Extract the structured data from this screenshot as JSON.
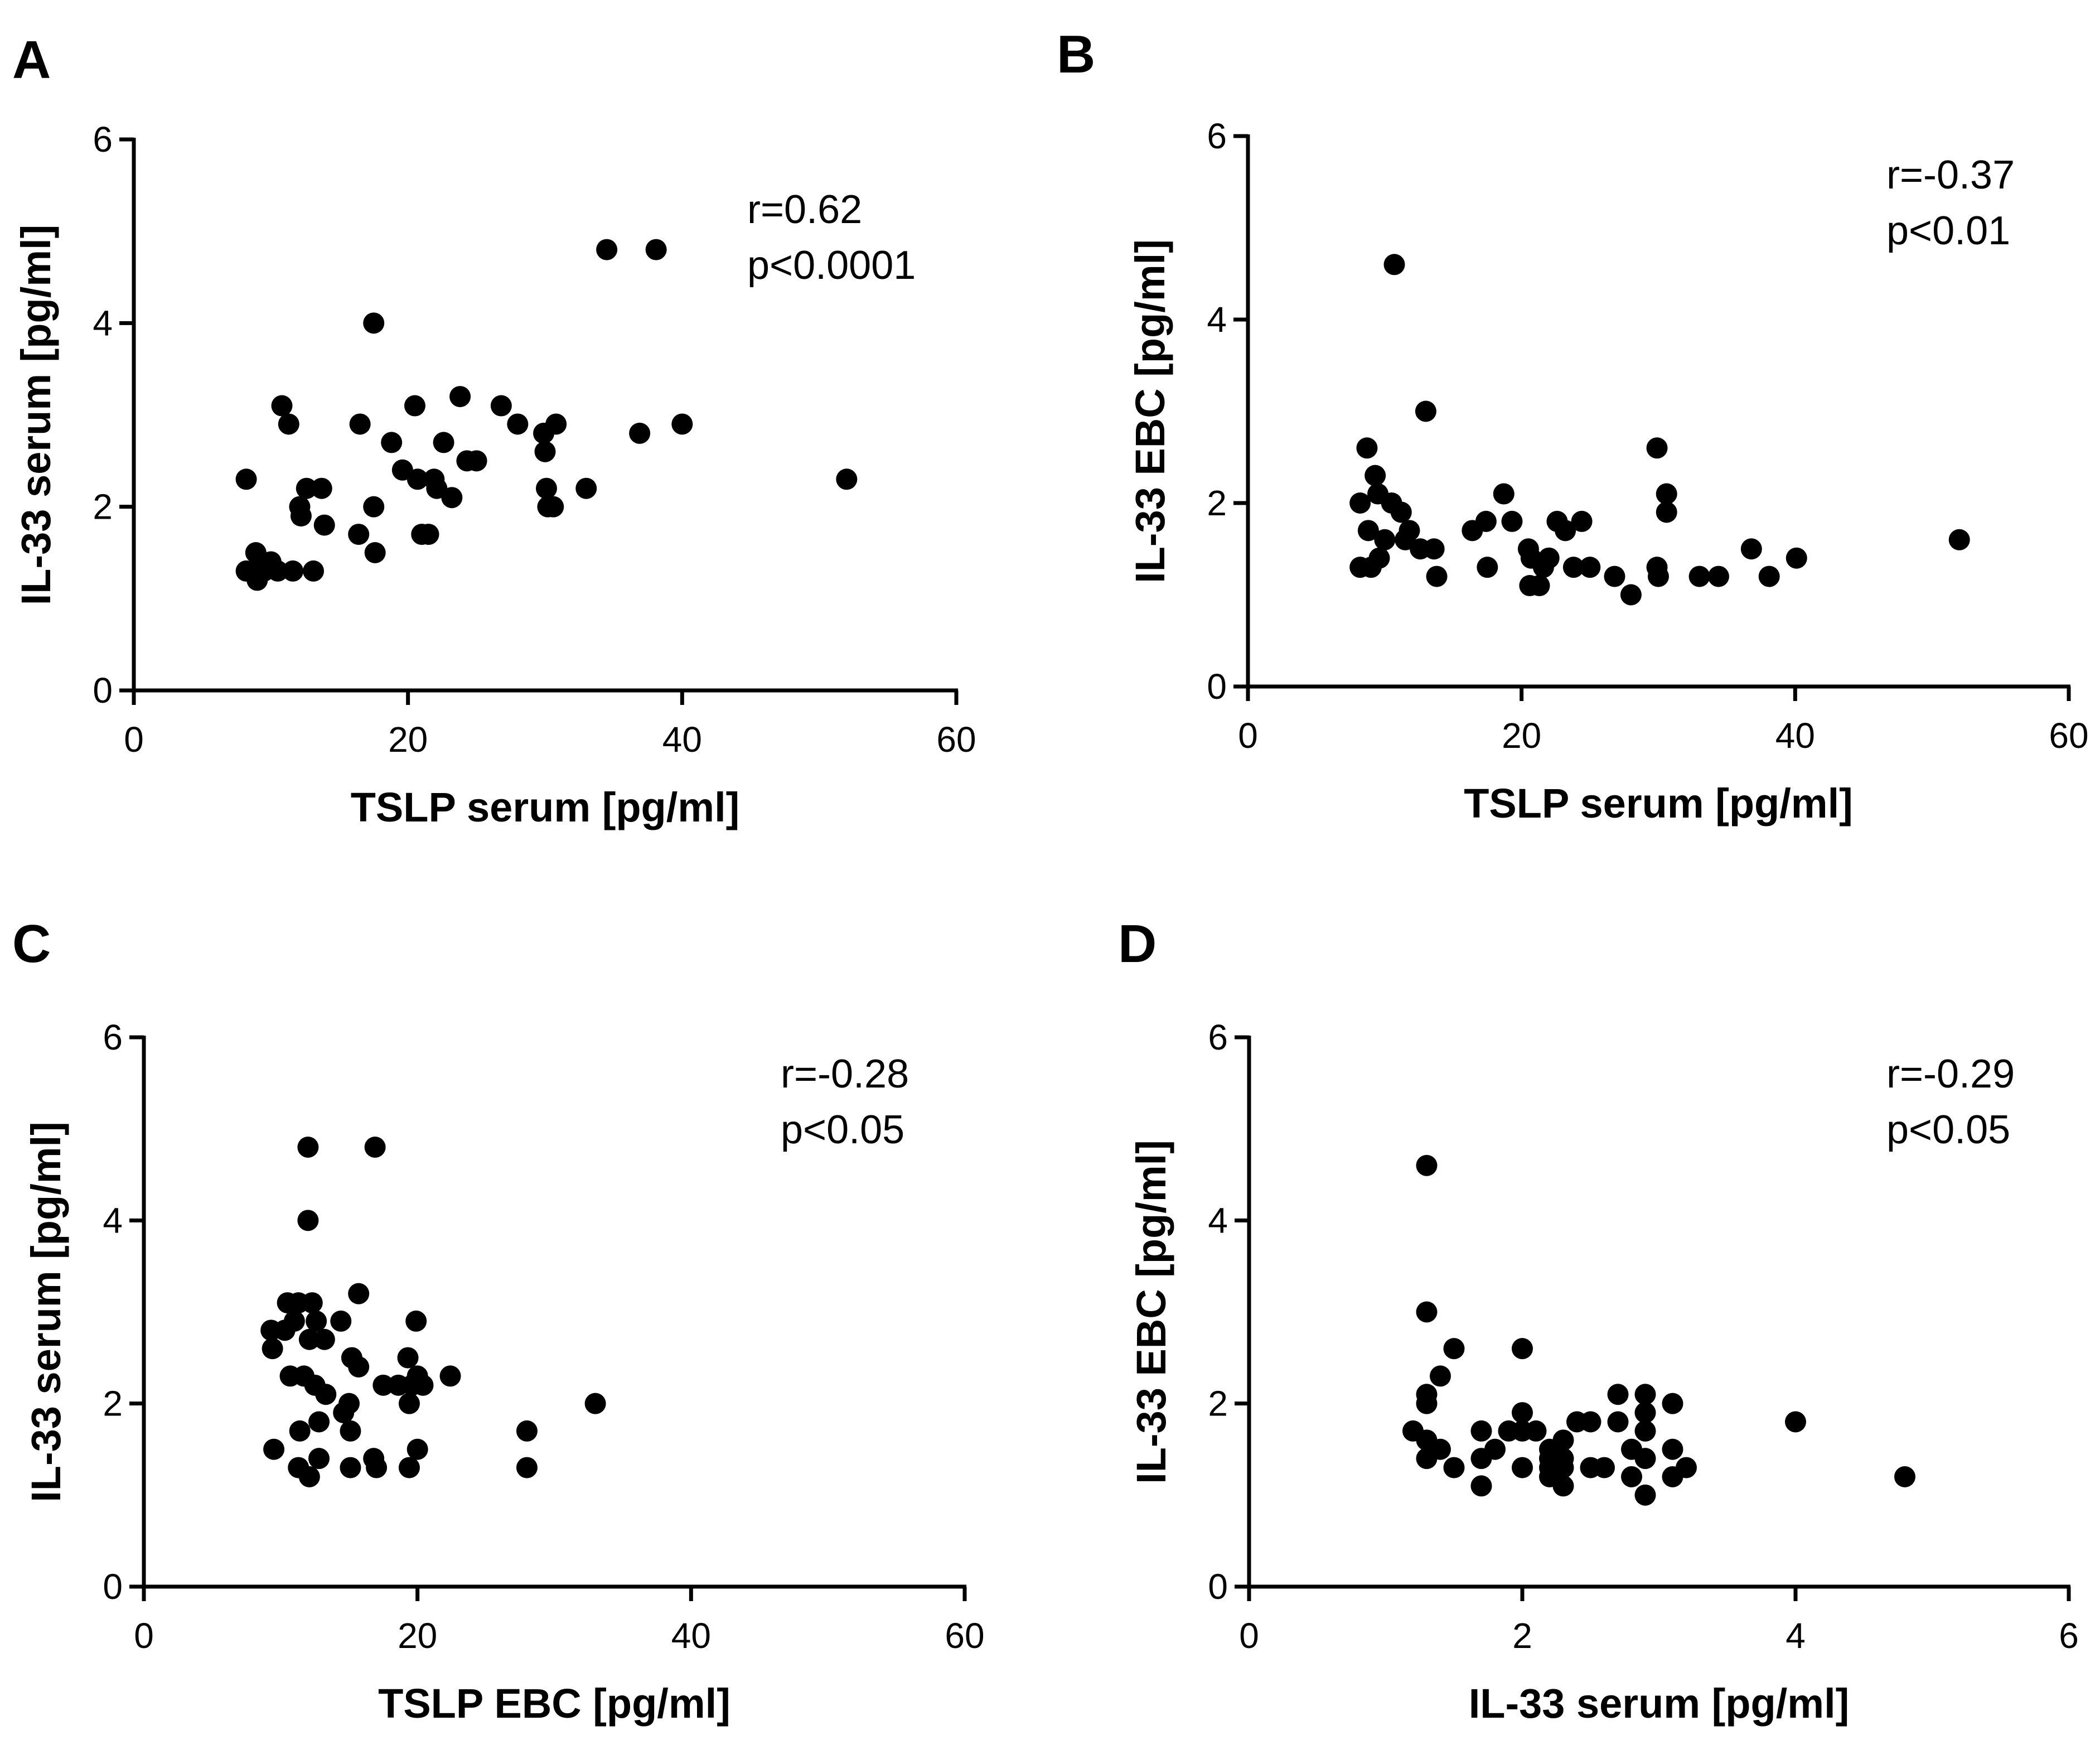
{
  "chart_data": [
    {
      "panel": "A",
      "type": "scatter",
      "xlabel": "TSLP serum [pg/ml]",
      "ylabel": "IL-33 serum [pg/ml]",
      "xlim": [
        0,
        60
      ],
      "ylim": [
        0,
        6
      ],
      "xticks": [
        "0",
        "20",
        "40",
        "60"
      ],
      "yticks": [
        "0",
        "2",
        "4",
        "6"
      ],
      "annotations": [
        "r=0.62",
        "p<0.0001"
      ],
      "points": [
        [
          8.2,
          2.3
        ],
        [
          8.2,
          1.3
        ],
        [
          8.7,
          1.3
        ],
        [
          8.9,
          1.5
        ],
        [
          9.0,
          1.2
        ],
        [
          9.5,
          1.3
        ],
        [
          10.0,
          1.4
        ],
        [
          10.5,
          1.3
        ],
        [
          10.8,
          3.1
        ],
        [
          11.3,
          2.9
        ],
        [
          11.6,
          1.3
        ],
        [
          12.1,
          2.0
        ],
        [
          12.2,
          1.9
        ],
        [
          12.6,
          2.2
        ],
        [
          13.1,
          1.3
        ],
        [
          13.7,
          2.2
        ],
        [
          13.9,
          1.8
        ],
        [
          16.4,
          1.7
        ],
        [
          16.5,
          2.9
        ],
        [
          17.5,
          4.0
        ],
        [
          17.5,
          2.0
        ],
        [
          17.6,
          1.5
        ],
        [
          18.8,
          2.7
        ],
        [
          19.6,
          2.4
        ],
        [
          20.5,
          3.1
        ],
        [
          20.7,
          2.3
        ],
        [
          21.0,
          1.7
        ],
        [
          21.5,
          1.7
        ],
        [
          21.9,
          2.3
        ],
        [
          22.1,
          2.2
        ],
        [
          22.6,
          2.7
        ],
        [
          23.2,
          2.1
        ],
        [
          23.8,
          3.2
        ],
        [
          24.3,
          2.5
        ],
        [
          25.0,
          2.5
        ],
        [
          26.8,
          3.1
        ],
        [
          28.0,
          2.9
        ],
        [
          29.9,
          2.8
        ],
        [
          30.0,
          2.6
        ],
        [
          30.1,
          2.2
        ],
        [
          30.2,
          2.0
        ],
        [
          30.6,
          2.0
        ],
        [
          30.8,
          2.9
        ],
        [
          33.0,
          2.2
        ],
        [
          34.5,
          4.8
        ],
        [
          36.9,
          2.8
        ],
        [
          38.1,
          4.8
        ],
        [
          40.0,
          2.9
        ],
        [
          52.0,
          2.3
        ]
      ]
    },
    {
      "panel": "B",
      "type": "scatter",
      "xlabel": "TSLP serum [pg/ml]",
      "ylabel": "IL-33 EBC [pg/ml]",
      "xlim": [
        0,
        60
      ],
      "ylim": [
        0,
        6
      ],
      "xticks": [
        "0",
        "20",
        "40",
        "60"
      ],
      "yticks": [
        "0",
        "2",
        "4",
        "6"
      ],
      "annotations": [
        "r=-0.37",
        "p<0.01"
      ],
      "points": [
        [
          8.2,
          2.0
        ],
        [
          8.2,
          1.3
        ],
        [
          8.7,
          2.6
        ],
        [
          8.8,
          1.7
        ],
        [
          9.0,
          1.3
        ],
        [
          9.3,
          2.3
        ],
        [
          9.5,
          2.1
        ],
        [
          9.6,
          1.4
        ],
        [
          10.0,
          1.6
        ],
        [
          10.5,
          2.0
        ],
        [
          10.7,
          4.6
        ],
        [
          11.2,
          1.9
        ],
        [
          11.5,
          1.6
        ],
        [
          11.8,
          1.7
        ],
        [
          12.6,
          1.5
        ],
        [
          13.0,
          3.0
        ],
        [
          13.6,
          1.5
        ],
        [
          13.8,
          1.2
        ],
        [
          16.4,
          1.7
        ],
        [
          17.4,
          1.8
        ],
        [
          17.5,
          1.3
        ],
        [
          18.7,
          2.1
        ],
        [
          19.3,
          1.8
        ],
        [
          20.5,
          1.5
        ],
        [
          20.6,
          1.1
        ],
        [
          20.7,
          1.4
        ],
        [
          21.3,
          1.1
        ],
        [
          21.6,
          1.3
        ],
        [
          22.0,
          1.4
        ],
        [
          22.6,
          1.8
        ],
        [
          23.2,
          1.7
        ],
        [
          23.8,
          1.3
        ],
        [
          24.4,
          1.8
        ],
        [
          25.0,
          1.3
        ],
        [
          26.8,
          1.2
        ],
        [
          28.0,
          1.0
        ],
        [
          29.9,
          2.6
        ],
        [
          29.9,
          1.3
        ],
        [
          30.0,
          1.2
        ],
        [
          30.6,
          2.1
        ],
        [
          30.6,
          1.9
        ],
        [
          33.0,
          1.2
        ],
        [
          34.4,
          1.2
        ],
        [
          36.8,
          1.5
        ],
        [
          38.1,
          1.2
        ],
        [
          40.1,
          1.4
        ],
        [
          52.0,
          1.6
        ]
      ]
    },
    {
      "panel": "C",
      "type": "scatter",
      "xlabel": "TSLP EBC [pg/ml]",
      "ylabel": "IL-33 serum [pg/ml]",
      "xlim": [
        0,
        60
      ],
      "ylim": [
        0,
        6
      ],
      "xticks": [
        "0",
        "20",
        "40",
        "60"
      ],
      "yticks": [
        "0",
        "2",
        "4",
        "6"
      ],
      "annotations": [
        "r=-0.28",
        "p<0.05"
      ],
      "points": [
        [
          9.3,
          2.8
        ],
        [
          9.4,
          2.6
        ],
        [
          9.5,
          1.5
        ],
        [
          10.3,
          2.8
        ],
        [
          10.5,
          3.1
        ],
        [
          10.7,
          2.3
        ],
        [
          11.0,
          2.9
        ],
        [
          11.3,
          3.1
        ],
        [
          11.3,
          1.3
        ],
        [
          11.4,
          1.7
        ],
        [
          11.7,
          2.3
        ],
        [
          12.0,
          4.8
        ],
        [
          12.0,
          4.0
        ],
        [
          12.1,
          2.7
        ],
        [
          12.1,
          1.2
        ],
        [
          12.3,
          3.1
        ],
        [
          12.5,
          2.2
        ],
        [
          12.6,
          2.9
        ],
        [
          12.8,
          1.8
        ],
        [
          12.8,
          1.4
        ],
        [
          13.2,
          2.7
        ],
        [
          13.3,
          2.1
        ],
        [
          14.4,
          2.9
        ],
        [
          14.6,
          1.9
        ],
        [
          15.0,
          2.0
        ],
        [
          15.1,
          1.7
        ],
        [
          15.1,
          1.3
        ],
        [
          15.2,
          2.5
        ],
        [
          15.7,
          3.2
        ],
        [
          15.7,
          2.4
        ],
        [
          16.8,
          1.4
        ],
        [
          16.9,
          4.8
        ],
        [
          17.0,
          1.3
        ],
        [
          17.5,
          2.2
        ],
        [
          18.6,
          2.2
        ],
        [
          19.3,
          2.5
        ],
        [
          19.4,
          2.0
        ],
        [
          19.4,
          1.3
        ],
        [
          19.6,
          2.2
        ],
        [
          19.9,
          2.9
        ],
        [
          20.0,
          2.3
        ],
        [
          20.0,
          1.5
        ],
        [
          20.4,
          2.2
        ],
        [
          22.4,
          2.3
        ],
        [
          28.0,
          1.7
        ],
        [
          28.0,
          1.3
        ],
        [
          33.0,
          2.0
        ]
      ]
    },
    {
      "panel": "D",
      "type": "scatter",
      "xlabel": "IL-33 serum [pg/ml]",
      "ylabel": "IL-33 EBC [pg/ml]",
      "xlim": [
        0,
        6
      ],
      "ylim": [
        0,
        6
      ],
      "xticks": [
        "0",
        "2",
        "4",
        "6"
      ],
      "yticks": [
        "0",
        "2",
        "4",
        "6"
      ],
      "annotations": [
        "r=-0.29",
        "p<0.05"
      ],
      "points": [
        [
          1.2,
          1.7
        ],
        [
          1.3,
          4.6
        ],
        [
          1.3,
          3.0
        ],
        [
          1.3,
          2.1
        ],
        [
          1.3,
          2.0
        ],
        [
          1.3,
          1.6
        ],
        [
          1.3,
          1.4
        ],
        [
          1.4,
          2.3
        ],
        [
          1.4,
          1.5
        ],
        [
          1.5,
          2.6
        ],
        [
          1.5,
          1.3
        ],
        [
          1.7,
          1.7
        ],
        [
          1.7,
          1.4
        ],
        [
          1.7,
          1.1
        ],
        [
          1.8,
          1.5
        ],
        [
          1.9,
          1.7
        ],
        [
          2.0,
          2.6
        ],
        [
          2.0,
          1.9
        ],
        [
          2.0,
          1.7
        ],
        [
          2.0,
          1.3
        ],
        [
          2.1,
          1.7
        ],
        [
          2.2,
          1.5
        ],
        [
          2.2,
          1.4
        ],
        [
          2.2,
          1.3
        ],
        [
          2.2,
          1.2
        ],
        [
          2.3,
          1.6
        ],
        [
          2.3,
          1.4
        ],
        [
          2.3,
          1.3
        ],
        [
          2.3,
          1.1
        ],
        [
          2.4,
          1.8
        ],
        [
          2.5,
          1.8
        ],
        [
          2.5,
          1.3
        ],
        [
          2.6,
          1.3
        ],
        [
          2.7,
          2.1
        ],
        [
          2.7,
          1.8
        ],
        [
          2.8,
          1.5
        ],
        [
          2.8,
          1.2
        ],
        [
          2.9,
          2.1
        ],
        [
          2.9,
          1.9
        ],
        [
          2.9,
          1.7
        ],
        [
          2.9,
          1.4
        ],
        [
          2.9,
          1.0
        ],
        [
          3.1,
          2.0
        ],
        [
          3.1,
          1.5
        ],
        [
          3.1,
          1.2
        ],
        [
          3.2,
          1.3
        ],
        [
          4.0,
          1.8
        ],
        [
          4.8,
          1.2
        ]
      ]
    }
  ]
}
